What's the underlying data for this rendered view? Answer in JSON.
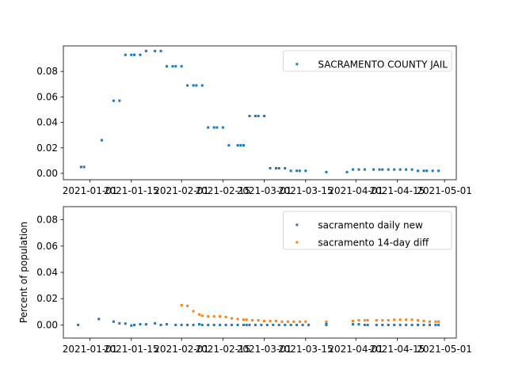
{
  "chart_data": [
    {
      "type": "scatter",
      "title": "",
      "xlabel": "",
      "ylabel": "",
      "x_range": [
        "2020-12-23",
        "2021-05-05"
      ],
      "ylim": [
        -0.005,
        0.1
      ],
      "x_ticks": [
        "2021-01-01",
        "2021-01-15",
        "2021-02-01",
        "2021-02-15",
        "2021-03-01",
        "2021-03-15",
        "2021-04-01",
        "2021-04-15",
        "2021-05-01"
      ],
      "y_ticks": [
        0.0,
        0.02,
        0.04,
        0.06,
        0.08
      ],
      "grid": false,
      "legend_position": "top-right",
      "series": [
        {
          "name": "SACRAMENTO COUNTY JAIL",
          "color": "#1f77b4",
          "points": [
            [
              "2020-12-29",
              0.005
            ],
            [
              "2020-12-30",
              0.005
            ],
            [
              "2021-01-05",
              0.026
            ],
            [
              "2021-01-09",
              0.057
            ],
            [
              "2021-01-11",
              0.057
            ],
            [
              "2021-01-13",
              0.093
            ],
            [
              "2021-01-15",
              0.093
            ],
            [
              "2021-01-16",
              0.093
            ],
            [
              "2021-01-18",
              0.093
            ],
            [
              "2021-01-20",
              0.096
            ],
            [
              "2021-01-23",
              0.096
            ],
            [
              "2021-01-25",
              0.096
            ],
            [
              "2021-01-27",
              0.084
            ],
            [
              "2021-01-29",
              0.084
            ],
            [
              "2021-01-30",
              0.084
            ],
            [
              "2021-02-01",
              0.084
            ],
            [
              "2021-02-03",
              0.069
            ],
            [
              "2021-02-05",
              0.069
            ],
            [
              "2021-02-06",
              0.069
            ],
            [
              "2021-02-08",
              0.069
            ],
            [
              "2021-02-10",
              0.036
            ],
            [
              "2021-02-12",
              0.036
            ],
            [
              "2021-02-13",
              0.036
            ],
            [
              "2021-02-15",
              0.036
            ],
            [
              "2021-02-17",
              0.022
            ],
            [
              "2021-02-20",
              0.022
            ],
            [
              "2021-02-21",
              0.022
            ],
            [
              "2021-02-22",
              0.022
            ],
            [
              "2021-02-24",
              0.045
            ],
            [
              "2021-02-26",
              0.045
            ],
            [
              "2021-02-27",
              0.045
            ],
            [
              "2021-03-01",
              0.045
            ],
            [
              "2021-03-03",
              0.004
            ],
            [
              "2021-03-05",
              0.004
            ],
            [
              "2021-03-06",
              0.004
            ],
            [
              "2021-03-08",
              0.004
            ],
            [
              "2021-03-10",
              0.002
            ],
            [
              "2021-03-12",
              0.002
            ],
            [
              "2021-03-13",
              0.002
            ],
            [
              "2021-03-15",
              0.002
            ],
            [
              "2021-03-22",
              0.001
            ],
            [
              "2021-03-29",
              0.001
            ],
            [
              "2021-03-31",
              0.003
            ],
            [
              "2021-04-02",
              0.003
            ],
            [
              "2021-04-04",
              0.003
            ],
            [
              "2021-04-07",
              0.003
            ],
            [
              "2021-04-09",
              0.003
            ],
            [
              "2021-04-10",
              0.003
            ],
            [
              "2021-04-12",
              0.003
            ],
            [
              "2021-04-14",
              0.003
            ],
            [
              "2021-04-16",
              0.003
            ],
            [
              "2021-04-18",
              0.003
            ],
            [
              "2021-04-20",
              0.003
            ],
            [
              "2021-04-22",
              0.002
            ],
            [
              "2021-04-24",
              0.002
            ],
            [
              "2021-04-25",
              0.002
            ],
            [
              "2021-04-27",
              0.002
            ],
            [
              "2021-04-29",
              0.002
            ]
          ]
        }
      ]
    },
    {
      "type": "scatter",
      "title": "",
      "xlabel": "",
      "ylabel": "Percent of population",
      "x_range": [
        "2020-12-23",
        "2021-05-05"
      ],
      "ylim": [
        -0.01,
        0.09
      ],
      "x_ticks": [
        "2021-01-01",
        "2021-01-15",
        "2021-02-01",
        "2021-02-15",
        "2021-03-01",
        "2021-03-15",
        "2021-04-01",
        "2021-04-15",
        "2021-05-01"
      ],
      "y_ticks": [
        0.0,
        0.02,
        0.04,
        0.06,
        0.08
      ],
      "grid": false,
      "legend_position": "top-right",
      "series": [
        {
          "name": "sacramento daily new",
          "color": "#1f77b4",
          "points": [
            [
              "2020-12-28",
              0.0
            ],
            [
              "2021-01-04",
              0.0045
            ],
            [
              "2021-01-09",
              0.0025
            ],
            [
              "2021-01-11",
              0.0012
            ],
            [
              "2021-01-13",
              0.001
            ],
            [
              "2021-01-15",
              -0.0005
            ],
            [
              "2021-01-16",
              0.0
            ],
            [
              "2021-01-18",
              0.0005
            ],
            [
              "2021-01-20",
              0.0005
            ],
            [
              "2021-01-23",
              0.0012
            ],
            [
              "2021-01-25",
              0.0
            ],
            [
              "2021-01-27",
              0.0005
            ],
            [
              "2021-01-30",
              0.0
            ],
            [
              "2021-02-01",
              0.0
            ],
            [
              "2021-02-03",
              0.0
            ],
            [
              "2021-02-05",
              0.0
            ],
            [
              "2021-02-07",
              0.0005
            ],
            [
              "2021-02-08",
              0.0
            ],
            [
              "2021-02-10",
              0.0
            ],
            [
              "2021-02-12",
              0.0
            ],
            [
              "2021-02-14",
              0.0
            ],
            [
              "2021-02-16",
              0.0
            ],
            [
              "2021-02-18",
              0.0
            ],
            [
              "2021-02-20",
              0.0
            ],
            [
              "2021-02-22",
              0.0
            ],
            [
              "2021-02-23",
              0.0
            ],
            [
              "2021-02-24",
              0.0
            ],
            [
              "2021-02-26",
              0.0
            ],
            [
              "2021-02-28",
              0.0
            ],
            [
              "2021-03-02",
              0.0
            ],
            [
              "2021-03-04",
              0.0
            ],
            [
              "2021-03-06",
              0.0
            ],
            [
              "2021-03-08",
              0.0
            ],
            [
              "2021-03-10",
              0.0
            ],
            [
              "2021-03-12",
              0.0
            ],
            [
              "2021-03-14",
              0.0
            ],
            [
              "2021-03-16",
              0.0
            ],
            [
              "2021-03-22",
              0.0
            ],
            [
              "2021-03-22",
              0.001
            ],
            [
              "2021-03-31",
              0.0005
            ],
            [
              "2021-04-02",
              0.0005
            ],
            [
              "2021-04-04",
              0.0
            ],
            [
              "2021-04-05",
              0.0
            ],
            [
              "2021-04-08",
              0.0
            ],
            [
              "2021-04-10",
              0.0
            ],
            [
              "2021-04-12",
              0.0
            ],
            [
              "2021-04-14",
              0.0
            ],
            [
              "2021-04-16",
              0.0
            ],
            [
              "2021-04-18",
              0.0
            ],
            [
              "2021-04-20",
              0.0
            ],
            [
              "2021-04-22",
              0.0
            ],
            [
              "2021-04-24",
              0.0
            ],
            [
              "2021-04-26",
              0.0
            ],
            [
              "2021-04-28",
              0.0
            ],
            [
              "2021-04-29",
              0.0
            ]
          ]
        },
        {
          "name": "sacramento 14-day diff",
          "color": "#ff7f0e",
          "points": [
            [
              "2021-02-01",
              0.015
            ],
            [
              "2021-02-03",
              0.0145
            ],
            [
              "2021-02-05",
              0.0105
            ],
            [
              "2021-02-07",
              0.008
            ],
            [
              "2021-02-08",
              0.007
            ],
            [
              "2021-02-10",
              0.0065
            ],
            [
              "2021-02-12",
              0.0065
            ],
            [
              "2021-02-14",
              0.0065
            ],
            [
              "2021-02-16",
              0.006
            ],
            [
              "2021-02-18",
              0.005
            ],
            [
              "2021-02-20",
              0.0045
            ],
            [
              "2021-02-22",
              0.004
            ],
            [
              "2021-02-23",
              0.004
            ],
            [
              "2021-02-25",
              0.0035
            ],
            [
              "2021-02-27",
              0.0035
            ],
            [
              "2021-03-01",
              0.003
            ],
            [
              "2021-03-03",
              0.003
            ],
            [
              "2021-03-05",
              0.003
            ],
            [
              "2021-03-07",
              0.0025
            ],
            [
              "2021-03-09",
              0.0025
            ],
            [
              "2021-03-11",
              0.0025
            ],
            [
              "2021-03-13",
              0.0025
            ],
            [
              "2021-03-15",
              0.0025
            ],
            [
              "2021-03-22",
              0.0025
            ],
            [
              "2021-03-31",
              0.003
            ],
            [
              "2021-04-02",
              0.0035
            ],
            [
              "2021-04-04",
              0.0035
            ],
            [
              "2021-04-05",
              0.0035
            ],
            [
              "2021-04-08",
              0.0035
            ],
            [
              "2021-04-10",
              0.0035
            ],
            [
              "2021-04-12",
              0.0035
            ],
            [
              "2021-04-14",
              0.004
            ],
            [
              "2021-04-16",
              0.004
            ],
            [
              "2021-04-18",
              0.004
            ],
            [
              "2021-04-20",
              0.004
            ],
            [
              "2021-04-22",
              0.0035
            ],
            [
              "2021-04-24",
              0.003
            ],
            [
              "2021-04-26",
              0.0025
            ],
            [
              "2021-04-28",
              0.0025
            ],
            [
              "2021-04-29",
              0.0025
            ]
          ]
        }
      ]
    }
  ]
}
